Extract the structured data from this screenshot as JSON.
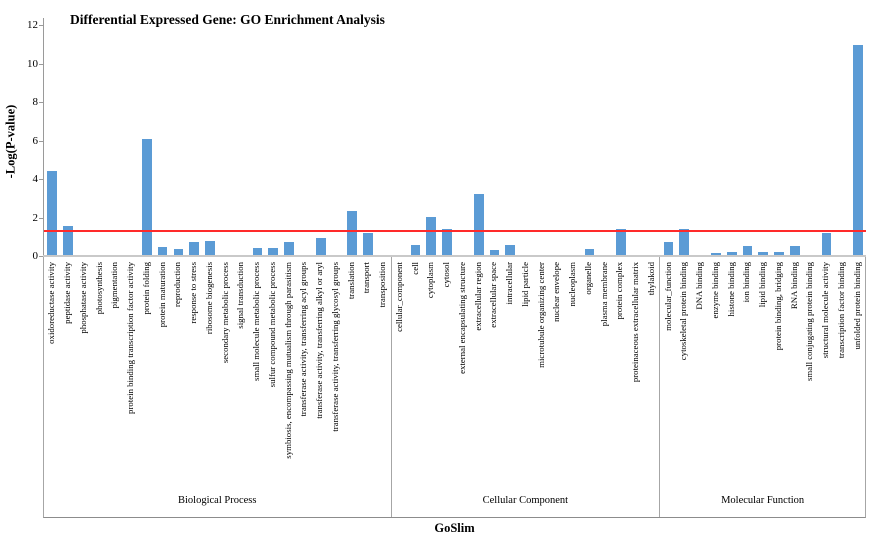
{
  "title": "Differential Expressed Gene: GO Enrichment Analysis",
  "chart_data": {
    "type": "bar",
    "title": "Differential Expressed Gene: GO Enrichment Analysis",
    "ylabel": "-Log(P-value)",
    "xlabel": "GoSlim",
    "ylim": [
      0,
      12
    ],
    "yticks": [
      0,
      2,
      4,
      6,
      8,
      10,
      12
    ],
    "grid": false,
    "legend": "none",
    "bar_color": "#5B9BD5",
    "threshold_line": {
      "value": 1.3,
      "color": "#FF2A2A"
    },
    "groups": [
      {
        "label": "Biological Process",
        "categories": [
          "oxidoreductase activity",
          "peptidase activity",
          "phosphatase activity",
          "photosynthesis",
          "pigmentation",
          "protein binding transcription factor activity",
          "protein folding",
          "protein maturation",
          "reproduction",
          "response to stress",
          "ribosome biogenesis",
          "secondary metabolic process",
          "signal transduction",
          "small molecule metabolic process",
          "sulfur compound metabolic process",
          "symbiosis, encompassing mutualism through parasitism",
          "transferase activity, transferring acyl groups",
          "transferase activity, transferring alkyl or aryl",
          "transferase activity, transferring glycosyl groups",
          "translation",
          "transport",
          "transposition"
        ],
        "values": [
          4.4,
          1.55,
          0.05,
          0,
          0,
          0,
          6.1,
          0.45,
          0.35,
          0.75,
          0.8,
          0,
          0,
          0.4,
          0.4,
          0.75,
          0.05,
          0.95,
          0.05,
          2.35,
          1.2,
          0
        ]
      },
      {
        "label": "Cellular Component",
        "categories": [
          "cellular_component",
          "cell",
          "cytoplasm",
          "cytosol",
          "external encapsulating structure",
          "extracellular region",
          "extracellular space",
          "intracellular",
          "lipid particle",
          "microtubule organizing center",
          "nuclear envelope",
          "nucleoplasm",
          "organelle",
          "plasma membrane",
          "protein complex",
          "proteinaceous extracellular matrix",
          "thylakoid"
        ],
        "values": [
          0,
          0.55,
          2.05,
          1.4,
          0,
          3.2,
          0.3,
          0.55,
          0,
          0.05,
          0,
          0,
          0.35,
          0.07,
          1.4,
          0.05,
          0
        ]
      },
      {
        "label": "Molecular Function",
        "categories": [
          "molecular_function",
          "cytoskeletal protein binding",
          "DNA binding",
          "enzyme binding",
          "histone binding",
          "ion binding",
          "lipid binding",
          "protein binding, bridging",
          "RNA binding",
          "small conjugating protein binding",
          "structural molecule activity",
          "transcription factor binding",
          "unfolded protein binding"
        ],
        "values": [
          0.75,
          1.4,
          0,
          0.15,
          0.2,
          0.5,
          0.2,
          0.2,
          0.5,
          0,
          1.2,
          0,
          10.95
        ]
      }
    ]
  }
}
